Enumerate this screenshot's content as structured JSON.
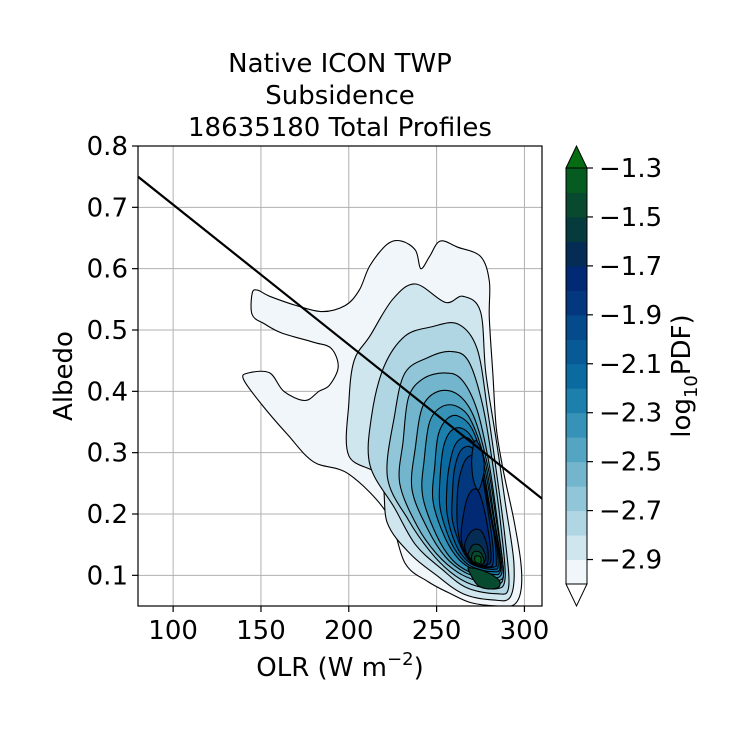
{
  "chart_data": {
    "type": "contour",
    "title_lines": [
      "Native ICON TWP",
      "Subsidence",
      "18635180 Total Profiles"
    ],
    "xlabel": "OLR (W m",
    "xlabel_sup": "−2",
    "xlabel_end": ")",
    "ylabel": "Albedo",
    "xlim": [
      80,
      310
    ],
    "ylim": [
      0.05,
      0.8
    ],
    "x_ticks": [
      100,
      150,
      200,
      250,
      300
    ],
    "y_ticks": [
      0.1,
      0.2,
      0.3,
      0.4,
      0.5,
      0.6,
      0.7,
      0.8
    ],
    "x_tick_labels": [
      "100",
      "150",
      "200",
      "250",
      "300"
    ],
    "y_tick_labels": [
      "0.1",
      "0.2",
      "0.3",
      "0.4",
      "0.5",
      "0.6",
      "0.7",
      "0.8"
    ],
    "grid": true,
    "reference_line": {
      "from": [
        80,
        0.75
      ],
      "to": [
        310,
        0.225
      ]
    },
    "colorbar": {
      "label_main": "log",
      "label_sub": "10",
      "label_end": "PDF)",
      "range": [
        -3.0,
        -1.3
      ],
      "tick_values": [
        -2.9,
        -2.7,
        -2.5,
        -2.3,
        -2.1,
        -1.9,
        -1.7,
        -1.5,
        -1.3
      ],
      "tick_labels": [
        "−2.9",
        "−2.7",
        "−2.5",
        "−2.3",
        "−2.1",
        "−1.9",
        "−1.7",
        "−1.5",
        "−1.3"
      ],
      "levels": [
        -3.0,
        -2.9,
        -2.8,
        -2.7,
        -2.6,
        -2.5,
        -2.4,
        -2.3,
        -2.2,
        -2.1,
        -2.0,
        -1.9,
        -1.8,
        -1.7,
        -1.6,
        -1.5,
        -1.4,
        -1.3
      ],
      "colors": [
        "#f0f6f9",
        "#cfe6ee",
        "#b0d6e3",
        "#91c6d8",
        "#72b5cd",
        "#54a5c2",
        "#3693b7",
        "#1c7fac",
        "#0b6ba0",
        "#075a95",
        "#054a8a",
        "#03387e",
        "#022973",
        "#042c55",
        "#063b3d",
        "#074a2f",
        "#065b20",
        "#046d12"
      ]
    },
    "contours": [
      {
        "level": -3.0,
        "points": [
          [
            140,
            0.42
          ],
          [
            150,
            0.38
          ],
          [
            165,
            0.33
          ],
          [
            180,
            0.285
          ],
          [
            200,
            0.265
          ],
          [
            222,
            0.2
          ],
          [
            232,
            0.12
          ],
          [
            245,
            0.09
          ],
          [
            258,
            0.07
          ],
          [
            270,
            0.055
          ],
          [
            285,
            0.05
          ],
          [
            294,
            0.052
          ],
          [
            298,
            0.075
          ],
          [
            298,
            0.12
          ],
          [
            294,
            0.19
          ],
          [
            288,
            0.27
          ],
          [
            284,
            0.34
          ],
          [
            282,
            0.43
          ],
          [
            280,
            0.52
          ],
          [
            280,
            0.58
          ],
          [
            275,
            0.62
          ],
          [
            262,
            0.635
          ],
          [
            252,
            0.645
          ],
          [
            246,
            0.62
          ],
          [
            241,
            0.6
          ],
          [
            238,
            0.63
          ],
          [
            230,
            0.645
          ],
          [
            222,
            0.64
          ],
          [
            212,
            0.605
          ],
          [
            206,
            0.565
          ],
          [
            198,
            0.54
          ],
          [
            185,
            0.53
          ],
          [
            170,
            0.54
          ],
          [
            155,
            0.555
          ],
          [
            148,
            0.565
          ],
          [
            145,
            0.56
          ],
          [
            145,
            0.525
          ],
          [
            152,
            0.51
          ],
          [
            162,
            0.495
          ],
          [
            180,
            0.48
          ],
          [
            190,
            0.47
          ],
          [
            194,
            0.44
          ],
          [
            189,
            0.41
          ],
          [
            183,
            0.4
          ],
          [
            175,
            0.385
          ],
          [
            163,
            0.4
          ],
          [
            155,
            0.43
          ],
          [
            143,
            0.43
          ]
        ]
      },
      {
        "level": -2.9,
        "points": [
          [
            200,
            0.295
          ],
          [
            218,
            0.26
          ],
          [
            222,
            0.185
          ],
          [
            235,
            0.135
          ],
          [
            250,
            0.1
          ],
          [
            265,
            0.07
          ],
          [
            282,
            0.06
          ],
          [
            292,
            0.065
          ],
          [
            294,
            0.12
          ],
          [
            289,
            0.22
          ],
          [
            284,
            0.32
          ],
          [
            278,
            0.43
          ],
          [
            275,
            0.53
          ],
          [
            265,
            0.555
          ],
          [
            255,
            0.545
          ],
          [
            238,
            0.575
          ],
          [
            225,
            0.55
          ],
          [
            212,
            0.49
          ],
          [
            203,
            0.45
          ],
          [
            200,
            0.38
          ]
        ]
      },
      {
        "level": -2.8,
        "points": [
          [
            212,
            0.28
          ],
          [
            226,
            0.21
          ],
          [
            238,
            0.15
          ],
          [
            253,
            0.11
          ],
          [
            267,
            0.08
          ],
          [
            284,
            0.07
          ],
          [
            291,
            0.08
          ],
          [
            289,
            0.16
          ],
          [
            284,
            0.27
          ],
          [
            279,
            0.37
          ],
          [
            273,
            0.47
          ],
          [
            262,
            0.51
          ],
          [
            247,
            0.505
          ],
          [
            232,
            0.49
          ],
          [
            220,
            0.44
          ],
          [
            213,
            0.36
          ]
        ]
      },
      {
        "level": -2.7,
        "points": [
          [
            222,
            0.26
          ],
          [
            234,
            0.19
          ],
          [
            246,
            0.14
          ],
          [
            258,
            0.105
          ],
          [
            270,
            0.085
          ],
          [
            284,
            0.078
          ],
          [
            289,
            0.095
          ],
          [
            287,
            0.17
          ],
          [
            282,
            0.28
          ],
          [
            276,
            0.38
          ],
          [
            268,
            0.45
          ],
          [
            258,
            0.465
          ],
          [
            245,
            0.455
          ],
          [
            232,
            0.43
          ],
          [
            226,
            0.36
          ]
        ]
      },
      {
        "level": -2.6,
        "points": [
          [
            229,
            0.25
          ],
          [
            239,
            0.18
          ],
          [
            250,
            0.135
          ],
          [
            262,
            0.105
          ],
          [
            274,
            0.09
          ],
          [
            285,
            0.085
          ],
          [
            288,
            0.105
          ],
          [
            285,
            0.18
          ],
          [
            280,
            0.28
          ],
          [
            273,
            0.37
          ],
          [
            264,
            0.42
          ],
          [
            254,
            0.43
          ],
          [
            242,
            0.42
          ],
          [
            234,
            0.39
          ],
          [
            231,
            0.32
          ]
        ]
      },
      {
        "level": -2.5,
        "points": [
          [
            236,
            0.24
          ],
          [
            245,
            0.175
          ],
          [
            255,
            0.13
          ],
          [
            266,
            0.105
          ],
          [
            277,
            0.095
          ],
          [
            286,
            0.092
          ],
          [
            288,
            0.11
          ],
          [
            284,
            0.19
          ],
          [
            279,
            0.28
          ],
          [
            271,
            0.36
          ],
          [
            262,
            0.395
          ],
          [
            251,
            0.4
          ],
          [
            242,
            0.375
          ],
          [
            238,
            0.31
          ]
        ]
      },
      {
        "level": -2.4,
        "points": [
          [
            242,
            0.23
          ],
          [
            250,
            0.165
          ],
          [
            259,
            0.125
          ],
          [
            269,
            0.105
          ],
          [
            279,
            0.098
          ],
          [
            286,
            0.098
          ],
          [
            287,
            0.12
          ],
          [
            283,
            0.19
          ],
          [
            278,
            0.28
          ],
          [
            270,
            0.35
          ],
          [
            262,
            0.375
          ],
          [
            253,
            0.375
          ],
          [
            246,
            0.35
          ],
          [
            243,
            0.29
          ]
        ]
      },
      {
        "level": -2.3,
        "points": [
          [
            248,
            0.22
          ],
          [
            255,
            0.16
          ],
          [
            263,
            0.125
          ],
          [
            272,
            0.108
          ],
          [
            281,
            0.102
          ],
          [
            286,
            0.104
          ],
          [
            286,
            0.13
          ],
          [
            282,
            0.2
          ],
          [
            277,
            0.28
          ],
          [
            270,
            0.34
          ],
          [
            262,
            0.36
          ],
          [
            256,
            0.355
          ],
          [
            251,
            0.33
          ],
          [
            249,
            0.28
          ]
        ]
      },
      {
        "level": -2.2,
        "points": [
          [
            252,
            0.21
          ],
          [
            258,
            0.155
          ],
          [
            266,
            0.122
          ],
          [
            274,
            0.11
          ],
          [
            282,
            0.106
          ],
          [
            286,
            0.11
          ],
          [
            285,
            0.14
          ],
          [
            281,
            0.2
          ],
          [
            276,
            0.28
          ],
          [
            270,
            0.325
          ],
          [
            264,
            0.34
          ],
          [
            258,
            0.335
          ],
          [
            254,
            0.31
          ],
          [
            252,
            0.26
          ]
        ]
      },
      {
        "level": -2.1,
        "points": [
          [
            256,
            0.2
          ],
          [
            261,
            0.15
          ],
          [
            268,
            0.122
          ],
          [
            276,
            0.112
          ],
          [
            283,
            0.11
          ],
          [
            285,
            0.115
          ],
          [
            284,
            0.15
          ],
          [
            280,
            0.21
          ],
          [
            276,
            0.28
          ],
          [
            271,
            0.315
          ],
          [
            266,
            0.325
          ],
          [
            261,
            0.315
          ],
          [
            258,
            0.29
          ],
          [
            256,
            0.25
          ]
        ]
      },
      {
        "level": -2.0,
        "points": [
          [
            259,
            0.19
          ],
          [
            264,
            0.145
          ],
          [
            270,
            0.12
          ],
          [
            277,
            0.113
          ],
          [
            283,
            0.114
          ],
          [
            284,
            0.12
          ],
          [
            283,
            0.16
          ],
          [
            279,
            0.22
          ],
          [
            275,
            0.28
          ],
          [
            271,
            0.305
          ],
          [
            267,
            0.31
          ],
          [
            263,
            0.3
          ],
          [
            260,
            0.27
          ],
          [
            259,
            0.23
          ]
        ]
      },
      {
        "level": -1.9,
        "points": [
          [
            262,
            0.175
          ],
          [
            266,
            0.135
          ],
          [
            272,
            0.118
          ],
          [
            278,
            0.114
          ],
          [
            282,
            0.118
          ],
          [
            282,
            0.15
          ],
          [
            279,
            0.21
          ],
          [
            276,
            0.26
          ],
          [
            273,
            0.29
          ],
          [
            269,
            0.295
          ],
          [
            265,
            0.28
          ],
          [
            262,
            0.24
          ]
        ]
      },
      {
        "level": -1.8,
        "points": [
          [
            264,
            0.16
          ],
          [
            268,
            0.128
          ],
          [
            273,
            0.117
          ],
          [
            279,
            0.117
          ],
          [
            281,
            0.13
          ],
          [
            279,
            0.18
          ],
          [
            276,
            0.22
          ],
          [
            273,
            0.24
          ],
          [
            269,
            0.235
          ],
          [
            266,
            0.21
          ]
        ]
      },
      {
        "level": -1.7,
        "points": [
          [
            266,
            0.145
          ],
          [
            270,
            0.122
          ],
          [
            275,
            0.116
          ],
          [
            279,
            0.12
          ],
          [
            279,
            0.145
          ],
          [
            276,
            0.17
          ],
          [
            272,
            0.175
          ],
          [
            268,
            0.165
          ]
        ]
      },
      {
        "level": -1.6,
        "points": [
          [
            268,
            0.132
          ],
          [
            272,
            0.12
          ],
          [
            276,
            0.118
          ],
          [
            278,
            0.13
          ],
          [
            275,
            0.148
          ],
          [
            271,
            0.15
          ],
          [
            269,
            0.142
          ]
        ]
      },
      {
        "level": -1.5,
        "points": [
          [
            270,
            0.125
          ],
          [
            274,
            0.117
          ],
          [
            277,
            0.122
          ],
          [
            275,
            0.137
          ],
          [
            271,
            0.138
          ]
        ]
      },
      {
        "level": -1.4,
        "points": [
          [
            272,
            0.122
          ],
          [
            275,
            0.12
          ],
          [
            275,
            0.13
          ],
          [
            272,
            0.131
          ]
        ]
      }
    ],
    "inner_peak": {
      "level": -2.0,
      "points": [
        [
          272,
          0.32
        ],
        [
          276,
          0.3
        ],
        [
          277,
          0.27
        ],
        [
          274,
          0.24
        ],
        [
          271,
          0.255
        ],
        [
          270,
          0.29
        ]
      ]
    },
    "bottom_peak": {
      "level": -1.5,
      "points": [
        [
          268,
          0.11
        ],
        [
          273,
          0.085
        ],
        [
          279,
          0.078
        ],
        [
          285,
          0.08
        ],
        [
          286,
          0.09
        ],
        [
          282,
          0.1
        ],
        [
          276,
          0.108
        ],
        [
          270,
          0.112
        ]
      ]
    }
  }
}
